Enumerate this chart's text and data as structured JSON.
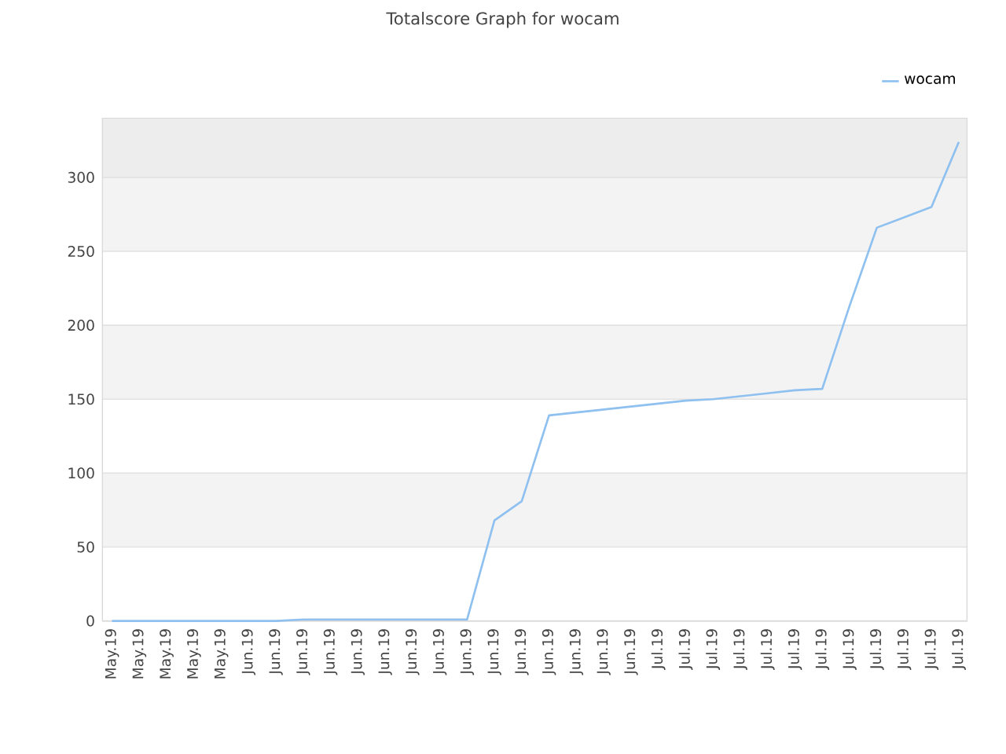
{
  "chart_data": {
    "type": "line",
    "title": "Totalscore Graph for wocam",
    "categories": [
      "May.19",
      "May.19",
      "May.19",
      "May.19",
      "May.19",
      "Jun.19",
      "Jun.19",
      "Jun.19",
      "Jun.19",
      "Jun.19",
      "Jun.19",
      "Jun.19",
      "Jun.19",
      "Jun.19",
      "Jun.19",
      "Jun.19",
      "Jun.19",
      "Jun.19",
      "Jun.19",
      "Jun.19",
      "Jul.19",
      "Jul.19",
      "Jul.19",
      "Jul.19",
      "Jul.19",
      "Jul.19",
      "Jul.19",
      "Jul.19",
      "Jul.19",
      "Jul.19",
      "Jul.19",
      "Jul.19"
    ],
    "series": [
      {
        "name": "wocam",
        "color": "#8ec0f0",
        "values": [
          0,
          0,
          0,
          0,
          0,
          0,
          0,
          1,
          1,
          1,
          1,
          1,
          1,
          1,
          68,
          81,
          139,
          141,
          143,
          145,
          147,
          149,
          150,
          152,
          154,
          156,
          157,
          213,
          266,
          273,
          280,
          324
        ]
      }
    ],
    "ylim": [
      0,
      340
    ],
    "yticks": [
      0,
      50,
      100,
      150,
      200,
      250,
      300
    ],
    "bands": [
      {
        "axis": "y",
        "from": 50,
        "to": 100,
        "color": "#f3f3f3"
      },
      {
        "axis": "y",
        "from": 150,
        "to": 200,
        "color": "#f3f3f3"
      },
      {
        "axis": "y",
        "from": 250,
        "to": 300,
        "color": "#f3f3f3"
      },
      {
        "axis": "y",
        "from": 300,
        "to": 340,
        "color": "#ededed"
      }
    ],
    "grid": "y",
    "legend": "top right",
    "marker": "none",
    "line_style": "solid"
  }
}
